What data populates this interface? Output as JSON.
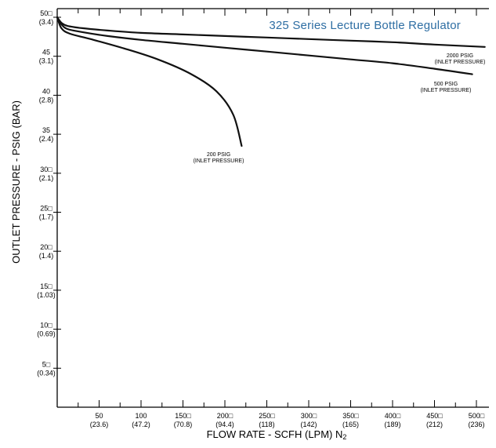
{
  "chart_data": {
    "type": "line",
    "title": "325 Series Lecture Bottle Regulator",
    "xlabel": "FLOW RATE - SCFH (LPM) N",
    "xlabel_sub": "2",
    "ylabel": "OUTLET PRESSURE - PSIG (BAR)",
    "xlim": [
      0,
      500
    ],
    "ylim": [
      0,
      50
    ],
    "grid": false,
    "x_ticks": [
      {
        "value": 50,
        "label": "50",
        "sublabel": "(23.6)"
      },
      {
        "value": 100,
        "label": "100",
        "sublabel": "(47.2)"
      },
      {
        "value": 150,
        "label": "150□",
        "sublabel": "(70.8)"
      },
      {
        "value": 200,
        "label": "200□",
        "sublabel": "(94.4)"
      },
      {
        "value": 250,
        "label": "250□",
        "sublabel": "(118)"
      },
      {
        "value": 300,
        "label": "300□",
        "sublabel": "(142)"
      },
      {
        "value": 350,
        "label": "350□",
        "sublabel": "(165)"
      },
      {
        "value": 400,
        "label": "400□",
        "sublabel": "(189)"
      },
      {
        "value": 450,
        "label": "450□",
        "sublabel": "(212)"
      },
      {
        "value": 500,
        "label": "500□",
        "sublabel": "(236)"
      }
    ],
    "y_ticks": [
      {
        "value": 5,
        "label": "5□",
        "sublabel": "(0.34)"
      },
      {
        "value": 10,
        "label": "10□",
        "sublabel": "(0.69)"
      },
      {
        "value": 15,
        "label": "15□",
        "sublabel": "(1.03)"
      },
      {
        "value": 20,
        "label": "20□",
        "sublabel": "(1.4)"
      },
      {
        "value": 25,
        "label": "25□",
        "sublabel": "(1.7)"
      },
      {
        "value": 30,
        "label": "30□",
        "sublabel": "(2.1)"
      },
      {
        "value": 35,
        "label": "35",
        "sublabel": "(2.4)"
      },
      {
        "value": 40,
        "label": "40",
        "sublabel": "(2.8)"
      },
      {
        "value": 45,
        "label": "45",
        "sublabel": "(3.1)"
      },
      {
        "value": 50,
        "label": "50□",
        "sublabel": "(3.4)"
      }
    ],
    "series": [
      {
        "name": "2000 PSIG",
        "label_line1": "2000 PSIG",
        "label_line2": "(INLET PRESSURE)",
        "points": [
          [
            0,
            50
          ],
          [
            5,
            49.3
          ],
          [
            12,
            48.9
          ],
          [
            30,
            48.6
          ],
          [
            60,
            48.3
          ],
          [
            100,
            48
          ],
          [
            150,
            47.8
          ],
          [
            200,
            47.6
          ],
          [
            250,
            47.4
          ],
          [
            300,
            47.2
          ],
          [
            350,
            47
          ],
          [
            400,
            46.8
          ],
          [
            450,
            46.5
          ],
          [
            510,
            46.2
          ]
        ]
      },
      {
        "name": "500 PSIG",
        "label_line1": "500 PSIG",
        "label_line2": "(INLET PRESSURE)",
        "points": [
          [
            0,
            50
          ],
          [
            5,
            49.1
          ],
          [
            12,
            48.5
          ],
          [
            30,
            48.1
          ],
          [
            60,
            47.6
          ],
          [
            100,
            47.1
          ],
          [
            150,
            46.6
          ],
          [
            200,
            46.1
          ],
          [
            250,
            45.6
          ],
          [
            300,
            45.1
          ],
          [
            350,
            44.6
          ],
          [
            400,
            44.1
          ],
          [
            450,
            43.4
          ],
          [
            495,
            42.7
          ]
        ]
      },
      {
        "name": "200 PSIG",
        "label_line1": "200 PSIG",
        "label_line2": "(INLET PRESSURE)",
        "points": [
          [
            0,
            50
          ],
          [
            5,
            48.6
          ],
          [
            15,
            47.9
          ],
          [
            40,
            47.2
          ],
          [
            80,
            46
          ],
          [
            120,
            44.6
          ],
          [
            160,
            42.7
          ],
          [
            190,
            40.5
          ],
          [
            210,
            37.5
          ],
          [
            220,
            33.5
          ]
        ]
      }
    ]
  }
}
